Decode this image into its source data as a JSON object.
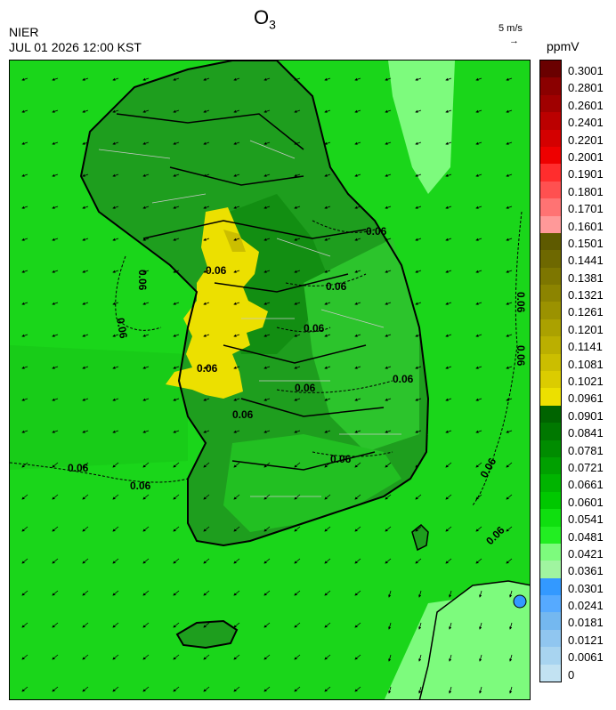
{
  "header": {
    "agency": "NIER",
    "datetime": "JUL 01 2026 12:00 KST",
    "title_main": "O",
    "title_sub": "3"
  },
  "wind_scale": {
    "label": "5 m/s",
    "arrow": "→"
  },
  "colorbar": {
    "unit": "ppmV",
    "levels": [
      "0.3001",
      "0.2801",
      "0.2601",
      "0.2401",
      "0.2201",
      "0.2001",
      "0.1901",
      "0.1801",
      "0.1701",
      "0.1601",
      "0.1501",
      "0.1441",
      "0.1381",
      "0.1321",
      "0.1261",
      "0.1201",
      "0.1141",
      "0.1081",
      "0.1021",
      "0.0961",
      "0.0901",
      "0.0841",
      "0.0781",
      "0.0721",
      "0.0661",
      "0.0601",
      "0.0541",
      "0.0481",
      "0.0421",
      "0.0361",
      "0.0301",
      "0.0241",
      "0.0181",
      "0.0121",
      "0.0061",
      "0"
    ],
    "colors": [
      "#6a0000",
      "#8b0000",
      "#a00000",
      "#bb0000",
      "#d40000",
      "#ee0000",
      "#ff2d2d",
      "#ff5050",
      "#ff7373",
      "#ff9999",
      "#5e5a00",
      "#6e6800",
      "#7d7600",
      "#8c8400",
      "#9b9200",
      "#aba100",
      "#bbaf00",
      "#cbbe00",
      "#dbcc00",
      "#ece000",
      "#006400",
      "#007800",
      "#008c00",
      "#00a000",
      "#00b400",
      "#00c800",
      "#0fdf0f",
      "#22ee22",
      "#7dfb7d",
      "#a0f5a0",
      "#3399ff",
      "#56aaff",
      "#74b8f0",
      "#90c6f0",
      "#a8d4f0",
      "#c2e2f2"
    ]
  },
  "contours": {
    "label": "0.06"
  },
  "colors": {
    "sea": "#1ad61a",
    "inland_dark": "#1e9e1e",
    "mid": "#2cb42c",
    "high_zone": "#ece000",
    "low_zone": "#7dfb7d",
    "coast": "#000000"
  }
}
